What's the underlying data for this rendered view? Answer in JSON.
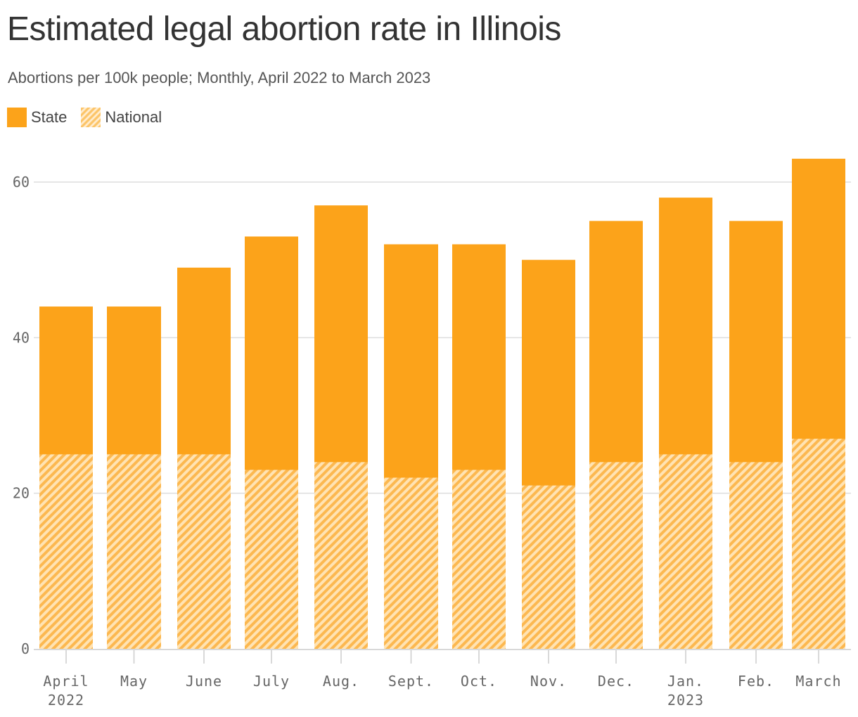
{
  "chart_data": {
    "type": "bar",
    "title": "Estimated legal abortion rate in Illinois",
    "subtitle": "Abortions per 100k people; Monthly, April 2022 to March 2023",
    "categories": [
      "April",
      "May",
      "June",
      "July",
      "Aug.",
      "Sept.",
      "Oct.",
      "Nov.",
      "Dec.",
      "Jan.",
      "Feb.",
      "March"
    ],
    "category_sublabels": [
      "2022",
      "",
      "",
      "",
      "",
      "",
      "",
      "",
      "",
      "2023",
      "",
      ""
    ],
    "series": [
      {
        "name": "State",
        "values": [
          44,
          44,
          49,
          53,
          57,
          52,
          52,
          50,
          55,
          58,
          55,
          63
        ]
      },
      {
        "name": "National",
        "values": [
          25,
          25,
          25,
          23,
          24,
          22,
          23,
          21,
          24,
          25,
          24,
          27
        ]
      }
    ],
    "ylim": [
      0,
      63
    ],
    "yticks": [
      0,
      20,
      40,
      60
    ],
    "grid": true,
    "legend_position": "top-left",
    "colors": {
      "state": "#FCA31A",
      "national_stripe": "#FCA31A",
      "national_bg": "#FFE3B3"
    }
  }
}
